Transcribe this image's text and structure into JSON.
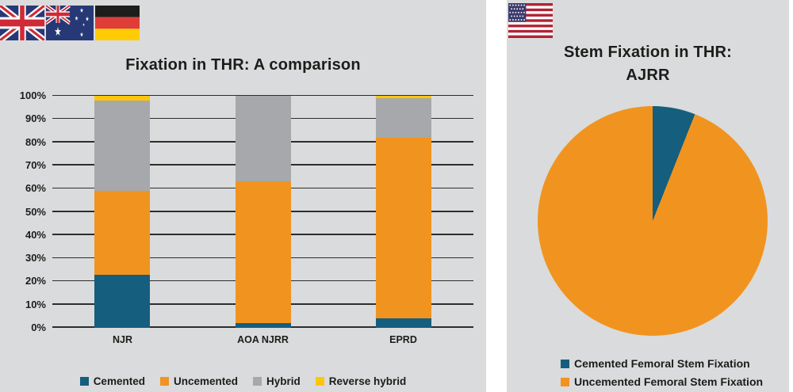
{
  "colors": {
    "panel_background": "#dadbdc",
    "page_background": "#ffffff",
    "gridline": "#2e2d2c",
    "text": "#1c1c1a",
    "cemented_blue": "#155e7e",
    "uncemented_orange": "#f0941f",
    "hybrid_gray": "#a6a8ab",
    "reverse_hybrid_yellow": "#ffc60b"
  },
  "icons": {
    "left_flags": [
      "uk-flag",
      "australia-flag",
      "germany-flag"
    ],
    "right_flag": "usa-flag"
  },
  "chart_data": [
    {
      "type": "bar",
      "stacked": true,
      "title": "Fixation in THR: A comparison",
      "categories": [
        "NJR",
        "AOA NJRR",
        "EPRD"
      ],
      "series": [
        {
          "name": "Cemented",
          "color": "#155e7e",
          "values": [
            23,
            2,
            4
          ]
        },
        {
          "name": "Uncemented",
          "color": "#f0941f",
          "values": [
            36,
            61,
            78
          ]
        },
        {
          "name": "Hybrid",
          "color": "#a6a8ab",
          "values": [
            39,
            37,
            17
          ]
        },
        {
          "name": "Reverse hybrid",
          "color": "#ffc60b",
          "values": [
            2,
            0,
            1
          ]
        }
      ],
      "xlabel": "",
      "ylabel": "",
      "ylim": [
        0,
        100
      ],
      "y_tick_labels": [
        "0%",
        "10%",
        "20%",
        "30%",
        "40%",
        "50%",
        "60%",
        "70%",
        "80%",
        "90%",
        "100%"
      ],
      "grid": true,
      "legend_position": "bottom"
    },
    {
      "type": "pie",
      "title": "Stem Fixation in THR: AJRR",
      "title_lines": [
        "Stem Fixation in THR:",
        "AJRR"
      ],
      "labels": [
        "Cemented Femoral Stem Fixation",
        "Uncemented Femoral Stem Fixation"
      ],
      "values": [
        6,
        94
      ],
      "colors": [
        "#155e7e",
        "#f0941f"
      ],
      "start_angle_deg": 0,
      "direction": "clockwise",
      "legend_position": "bottom"
    }
  ]
}
